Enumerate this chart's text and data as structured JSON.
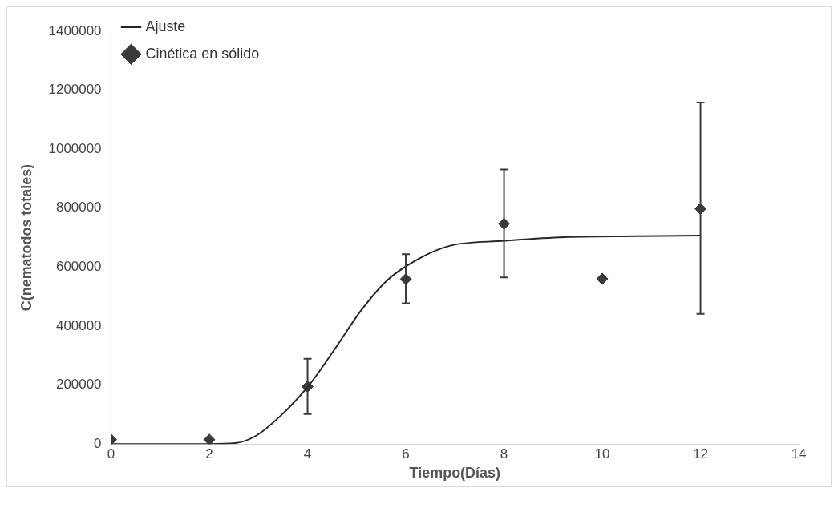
{
  "chart_data": {
    "type": "scatter",
    "xlabel": "Tiempo(Días)",
    "ylabel": "C(nematodos totales)",
    "xlim": [
      0,
      14
    ],
    "xticks": [
      0,
      2,
      4,
      6,
      8,
      10,
      12,
      14
    ],
    "ylim": [
      0,
      1400000
    ],
    "yticks": [
      0,
      200000,
      400000,
      600000,
      800000,
      1000000,
      1200000,
      1400000
    ],
    "grid": false,
    "legend": "top left",
    "series": [
      {
        "name": "Ajuste",
        "type": "line",
        "color": "#262626",
        "marker": "none",
        "line_style": "solid",
        "x": [
          0,
          2,
          2.53,
          2.96,
          3.49,
          4.02,
          4.55,
          5.09,
          5.62,
          6.26,
          6.89,
          8.01,
          9.13,
          10.72,
          12
        ],
        "values": [
          0,
          0,
          3000,
          29000,
          102000,
          197000,
          321000,
          453000,
          555000,
          628000,
          672000,
          689000,
          701000,
          705000,
          707000
        ]
      },
      {
        "name": "Cinética en sólido",
        "type": "scatter",
        "color": "#3a3a3a",
        "marker": "diamond",
        "x": [
          0,
          2,
          4,
          6,
          8,
          10,
          12
        ],
        "values": [
          15000,
          15000,
          195000,
          559000,
          747000,
          560000,
          798000
        ],
        "errors": [
          null,
          null,
          [
            102000,
            289000
          ],
          [
            477000,
            644000
          ],
          [
            565000,
            931000
          ],
          null,
          [
            441000,
            1158000
          ]
        ]
      }
    ]
  }
}
